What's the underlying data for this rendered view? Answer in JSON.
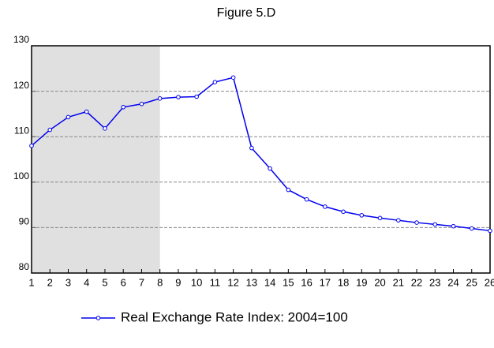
{
  "chart_data": {
    "type": "line",
    "title": "Figure 5.D",
    "x": [
      1,
      2,
      3,
      4,
      5,
      6,
      7,
      8,
      9,
      10,
      11,
      12,
      13,
      14,
      15,
      16,
      17,
      18,
      19,
      20,
      21,
      22,
      23,
      24,
      25,
      26
    ],
    "xlim": [
      1,
      26
    ],
    "series": [
      {
        "name": "Real Exchange Rate Index: 2004=100",
        "color": "#0000ee",
        "values": [
          108,
          111.5,
          114.3,
          115.5,
          111.8,
          116.5,
          117.2,
          118.4,
          118.7,
          118.8,
          122,
          123,
          107.5,
          103,
          98.3,
          96.2,
          94.6,
          93.5,
          92.7,
          92.1,
          91.6,
          91.1,
          90.7,
          90.3,
          89.8,
          89.3
        ]
      }
    ],
    "ylim": [
      80,
      130
    ],
    "yticks": [
      80,
      90,
      100,
      110,
      120,
      130
    ],
    "grid": true,
    "shade_x": [
      1,
      8
    ],
    "shade_color": "#e0e0e0",
    "legend": "bottom"
  }
}
